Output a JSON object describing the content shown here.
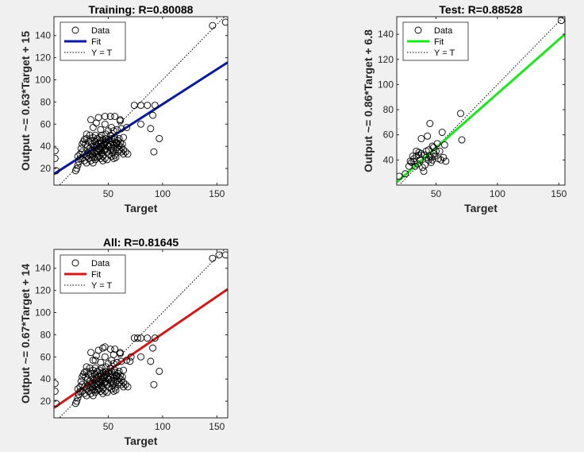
{
  "chart_data": [
    {
      "type": "scatter",
      "title": "Training: R=0.80088",
      "xlabel": "Target",
      "ylabel": "Output ~= 0.63*Target + 15",
      "xlim": [
        0,
        160
      ],
      "ylim": [
        5,
        157
      ],
      "xticks": [
        50,
        100,
        150
      ],
      "yticks": [
        20,
        40,
        60,
        80,
        100,
        120,
        140
      ],
      "fit_color": "#0a1a9e",
      "fit": {
        "slope": 0.63,
        "intercept": 15
      },
      "legend": {
        "position": "top-left",
        "entries": [
          "Data",
          "Fit",
          "Y = T"
        ]
      },
      "points": [
        [
          146,
          149
        ],
        [
          158,
          152
        ],
        [
          1,
          36
        ],
        [
          1,
          29
        ],
        [
          2,
          18
        ],
        [
          80,
          77
        ],
        [
          86,
          77
        ],
        [
          93,
          77
        ],
        [
          74,
          77
        ],
        [
          91,
          68
        ],
        [
          89,
          56
        ],
        [
          97,
          47
        ],
        [
          92,
          35
        ],
        [
          80,
          60
        ],
        [
          67,
          57
        ],
        [
          62,
          56
        ],
        [
          61,
          64
        ],
        [
          61,
          63
        ],
        [
          56,
          67
        ],
        [
          52,
          67
        ],
        [
          47,
          67
        ],
        [
          41,
          66
        ],
        [
          34,
          64
        ],
        [
          47,
          60
        ],
        [
          39,
          61
        ],
        [
          53,
          57
        ],
        [
          50,
          54
        ],
        [
          55,
          54
        ],
        [
          58,
          55
        ],
        [
          43,
          55
        ],
        [
          36,
          57
        ],
        [
          30,
          51
        ],
        [
          33,
          50
        ],
        [
          38,
          50
        ],
        [
          44,
          50
        ],
        [
          48,
          51
        ],
        [
          52,
          50
        ],
        [
          56,
          48
        ],
        [
          60,
          47
        ],
        [
          64,
          48
        ],
        [
          27,
          44
        ],
        [
          29,
          42
        ],
        [
          31,
          40
        ],
        [
          33,
          38
        ],
        [
          35,
          36
        ],
        [
          37,
          39
        ],
        [
          39,
          41
        ],
        [
          41,
          43
        ],
        [
          43,
          45
        ],
        [
          45,
          46
        ],
        [
          47,
          44
        ],
        [
          49,
          42
        ],
        [
          51,
          40
        ],
        [
          53,
          38
        ],
        [
          55,
          36
        ],
        [
          57,
          37
        ],
        [
          59,
          35
        ],
        [
          25,
          38
        ],
        [
          26,
          35
        ],
        [
          28,
          33
        ],
        [
          30,
          31
        ],
        [
          32,
          29
        ],
        [
          34,
          27
        ],
        [
          36,
          25
        ],
        [
          38,
          28
        ],
        [
          40,
          30
        ],
        [
          42,
          32
        ],
        [
          44,
          34
        ],
        [
          46,
          36
        ],
        [
          48,
          38
        ],
        [
          50,
          40
        ],
        [
          52,
          42
        ],
        [
          54,
          44
        ],
        [
          56,
          46
        ],
        [
          58,
          43
        ],
        [
          60,
          41
        ],
        [
          62,
          39
        ],
        [
          64,
          37
        ],
        [
          66,
          35
        ],
        [
          68,
          33
        ],
        [
          20,
          18
        ],
        [
          21,
          20
        ],
        [
          22,
          23
        ],
        [
          23,
          26
        ],
        [
          24,
          29
        ],
        [
          22,
          31
        ],
        [
          24,
          33
        ],
        [
          26,
          29
        ],
        [
          28,
          27
        ],
        [
          30,
          25
        ],
        [
          31,
          34
        ],
        [
          33,
          32
        ],
        [
          35,
          30
        ],
        [
          37,
          34
        ],
        [
          39,
          36
        ],
        [
          41,
          38
        ],
        [
          43,
          40
        ],
        [
          45,
          39
        ],
        [
          47,
          37
        ],
        [
          49,
          35
        ],
        [
          51,
          33
        ],
        [
          53,
          31
        ],
        [
          55,
          29
        ],
        [
          57,
          30
        ],
        [
          38,
          44
        ],
        [
          40,
          47
        ],
        [
          42,
          48
        ],
        [
          44,
          43
        ],
        [
          46,
          41
        ],
        [
          48,
          47
        ],
        [
          35,
          42
        ],
        [
          37,
          45
        ],
        [
          36,
          48
        ],
        [
          34,
          45
        ],
        [
          32,
          44
        ],
        [
          30,
          47
        ],
        [
          28,
          46
        ],
        [
          26,
          42
        ],
        [
          41,
          35
        ],
        [
          43,
          37
        ],
        [
          45,
          31
        ],
        [
          47,
          29
        ],
        [
          49,
          28
        ],
        [
          51,
          45
        ],
        [
          53,
          47
        ],
        [
          55,
          41
        ],
        [
          57,
          43
        ],
        [
          59,
          45
        ],
        [
          61,
          43
        ],
        [
          63,
          42
        ],
        [
          40,
          40
        ],
        [
          42,
          36
        ],
        [
          44,
          38
        ],
        [
          46,
          42
        ],
        [
          48,
          44
        ],
        [
          50,
          46
        ],
        [
          52,
          36
        ],
        [
          54,
          34
        ],
        [
          56,
          32
        ],
        [
          58,
          39
        ],
        [
          60,
          37
        ],
        [
          62,
          35
        ],
        [
          64,
          33
        ],
        [
          39,
          33
        ],
        [
          41,
          31
        ],
        [
          43,
          29
        ],
        [
          45,
          27
        ],
        [
          37,
          30
        ],
        [
          35,
          33
        ],
        [
          33,
          36
        ]
      ]
    },
    {
      "type": "scatter",
      "title": "Test: R=0.88528",
      "xlabel": "Target",
      "ylabel": "Output ~= 0.86*Target + 6.8",
      "xlim": [
        18,
        155
      ],
      "ylim": [
        20,
        154
      ],
      "xticks": [
        50,
        100,
        150
      ],
      "yticks": [
        40,
        60,
        80,
        100,
        120,
        140
      ],
      "fit_color": "#1ee61e",
      "fit": {
        "slope": 0.86,
        "intercept": 6.8
      },
      "legend": {
        "position": "top-left",
        "entries": [
          "Data",
          "Fit",
          "Y = T"
        ]
      },
      "points": [
        [
          152,
          151
        ],
        [
          20,
          27
        ],
        [
          25,
          29
        ],
        [
          28,
          35
        ],
        [
          30,
          38
        ],
        [
          32,
          41
        ],
        [
          34,
          43
        ],
        [
          36,
          44
        ],
        [
          38,
          45
        ],
        [
          40,
          44
        ],
        [
          42,
          42
        ],
        [
          44,
          40
        ],
        [
          46,
          42
        ],
        [
          48,
          45
        ],
        [
          50,
          47
        ],
        [
          52,
          41
        ],
        [
          54,
          40
        ],
        [
          56,
          42
        ],
        [
          58,
          39
        ],
        [
          45,
          69
        ],
        [
          43,
          59
        ],
        [
          38,
          57
        ],
        [
          47,
          51
        ],
        [
          51,
          53
        ],
        [
          55,
          62
        ],
        [
          70,
          77
        ],
        [
          71,
          56
        ],
        [
          35,
          37
        ],
        [
          37,
          40
        ],
        [
          39,
          34
        ],
        [
          41,
          36
        ],
        [
          44,
          48
        ],
        [
          46,
          38
        ],
        [
          48,
          50
        ],
        [
          33,
          35
        ],
        [
          31,
          43
        ],
        [
          29,
          39
        ],
        [
          36,
          46
        ],
        [
          42,
          47
        ],
        [
          49,
          43
        ],
        [
          53,
          47
        ],
        [
          57,
          52
        ],
        [
          40,
          31
        ],
        [
          32,
          39
        ],
        [
          34,
          47
        ],
        [
          45,
          43
        ],
        [
          47,
          40
        ]
      ]
    },
    {
      "type": "scatter",
      "title": "All: R=0.81645",
      "xlabel": "Target",
      "ylabel": "Output ~= 0.67*Target + 14",
      "xlim": [
        0,
        160
      ],
      "ylim": [
        5,
        157
      ],
      "xticks": [
        50,
        100,
        150
      ],
      "yticks": [
        20,
        40,
        60,
        80,
        100,
        120,
        140
      ],
      "fit_color": "#d01a1a",
      "fit": {
        "slope": 0.67,
        "intercept": 14
      },
      "legend": {
        "position": "top-left",
        "entries": [
          "Data",
          "Fit",
          "Y = T"
        ]
      },
      "points": [
        [
          146,
          149
        ],
        [
          152,
          152
        ],
        [
          158,
          152
        ],
        [
          1,
          36
        ],
        [
          1,
          29
        ],
        [
          2,
          18
        ],
        [
          80,
          77
        ],
        [
          86,
          77
        ],
        [
          93,
          77
        ],
        [
          74,
          77
        ],
        [
          77,
          77
        ],
        [
          91,
          68
        ],
        [
          89,
          56
        ],
        [
          97,
          47
        ],
        [
          92,
          35
        ],
        [
          80,
          60
        ],
        [
          67,
          57
        ],
        [
          62,
          56
        ],
        [
          61,
          64
        ],
        [
          61,
          63
        ],
        [
          56,
          67
        ],
        [
          52,
          67
        ],
        [
          47,
          69
        ],
        [
          45,
          68
        ],
        [
          41,
          66
        ],
        [
          34,
          64
        ],
        [
          47,
          60
        ],
        [
          39,
          61
        ],
        [
          53,
          57
        ],
        [
          50,
          54
        ],
        [
          55,
          54
        ],
        [
          58,
          55
        ],
        [
          43,
          55
        ],
        [
          36,
          57
        ],
        [
          30,
          51
        ],
        [
          33,
          50
        ],
        [
          38,
          50
        ],
        [
          44,
          50
        ],
        [
          48,
          51
        ],
        [
          52,
          50
        ],
        [
          56,
          48
        ],
        [
          60,
          47
        ],
        [
          64,
          48
        ],
        [
          27,
          44
        ],
        [
          29,
          42
        ],
        [
          31,
          40
        ],
        [
          33,
          38
        ],
        [
          35,
          36
        ],
        [
          37,
          39
        ],
        [
          39,
          41
        ],
        [
          41,
          43
        ],
        [
          43,
          45
        ],
        [
          45,
          46
        ],
        [
          47,
          44
        ],
        [
          49,
          42
        ],
        [
          51,
          40
        ],
        [
          53,
          38
        ],
        [
          55,
          36
        ],
        [
          57,
          37
        ],
        [
          59,
          35
        ],
        [
          25,
          38
        ],
        [
          26,
          35
        ],
        [
          28,
          33
        ],
        [
          30,
          31
        ],
        [
          32,
          29
        ],
        [
          34,
          27
        ],
        [
          36,
          25
        ],
        [
          38,
          28
        ],
        [
          40,
          30
        ],
        [
          42,
          32
        ],
        [
          44,
          34
        ],
        [
          46,
          36
        ],
        [
          48,
          38
        ],
        [
          50,
          40
        ],
        [
          52,
          42
        ],
        [
          54,
          44
        ],
        [
          56,
          46
        ],
        [
          58,
          43
        ],
        [
          60,
          41
        ],
        [
          62,
          39
        ],
        [
          64,
          37
        ],
        [
          66,
          35
        ],
        [
          68,
          33
        ],
        [
          20,
          18
        ],
        [
          21,
          20
        ],
        [
          22,
          23
        ],
        [
          23,
          26
        ],
        [
          24,
          29
        ],
        [
          22,
          31
        ],
        [
          24,
          33
        ],
        [
          26,
          29
        ],
        [
          28,
          27
        ],
        [
          30,
          25
        ],
        [
          31,
          34
        ],
        [
          33,
          32
        ],
        [
          35,
          30
        ],
        [
          37,
          34
        ],
        [
          39,
          36
        ],
        [
          41,
          38
        ],
        [
          43,
          40
        ],
        [
          45,
          39
        ],
        [
          47,
          37
        ],
        [
          49,
          35
        ],
        [
          51,
          33
        ],
        [
          53,
          31
        ],
        [
          55,
          29
        ],
        [
          57,
          30
        ],
        [
          38,
          44
        ],
        [
          40,
          47
        ],
        [
          42,
          48
        ],
        [
          44,
          43
        ],
        [
          46,
          41
        ],
        [
          48,
          47
        ],
        [
          35,
          42
        ],
        [
          37,
          45
        ],
        [
          36,
          48
        ],
        [
          34,
          45
        ],
        [
          32,
          44
        ],
        [
          30,
          47
        ],
        [
          28,
          46
        ],
        [
          26,
          42
        ],
        [
          41,
          35
        ],
        [
          43,
          37
        ],
        [
          45,
          31
        ],
        [
          47,
          29
        ],
        [
          49,
          28
        ],
        [
          51,
          45
        ],
        [
          53,
          47
        ],
        [
          55,
          41
        ],
        [
          57,
          43
        ],
        [
          59,
          45
        ],
        [
          61,
          43
        ],
        [
          63,
          42
        ],
        [
          40,
          40
        ],
        [
          42,
          36
        ],
        [
          44,
          38
        ],
        [
          46,
          42
        ],
        [
          48,
          44
        ],
        [
          50,
          46
        ],
        [
          52,
          36
        ],
        [
          54,
          34
        ],
        [
          56,
          32
        ],
        [
          58,
          39
        ],
        [
          60,
          37
        ],
        [
          62,
          35
        ],
        [
          64,
          33
        ],
        [
          39,
          33
        ],
        [
          41,
          31
        ],
        [
          43,
          29
        ],
        [
          45,
          27
        ],
        [
          37,
          30
        ],
        [
          35,
          33
        ],
        [
          33,
          36
        ],
        [
          70,
          56
        ],
        [
          71,
          60
        ],
        [
          55,
          62
        ],
        [
          38,
          57
        ]
      ]
    }
  ]
}
